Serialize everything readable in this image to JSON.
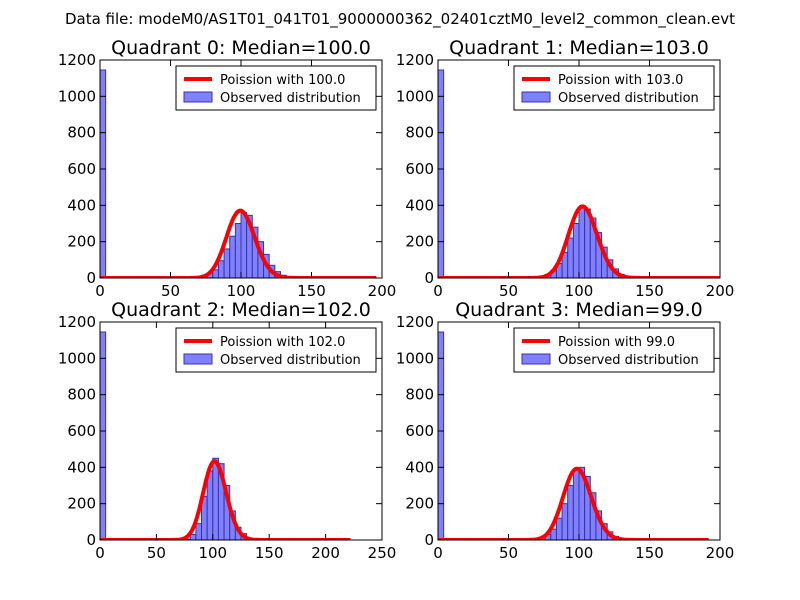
{
  "figure": {
    "title": "Data file: modeM0/AS1T01_041T01_9000000362_02401cztM0_level2_common_clean.evt"
  },
  "colors": {
    "bar_fill": "#8080ff",
    "bar_edge": "#3333aa",
    "line": "#ff0000",
    "axis": "#000000"
  },
  "chart_data": [
    {
      "type": "bar",
      "title": "Quadrant 0: Median=100.0",
      "xlim": [
        0,
        200
      ],
      "ylim": [
        0,
        1200
      ],
      "xticks": [
        0,
        50,
        100,
        150,
        200
      ],
      "yticks": [
        0,
        200,
        400,
        600,
        800,
        1000,
        1200
      ],
      "grid": false,
      "legend_position": "top-right",
      "bin_width": 4,
      "observed": {
        "name": "Observed distribution",
        "bins": [
          [
            0,
            1145
          ],
          [
            64,
            5
          ],
          [
            68,
            8
          ],
          [
            72,
            15
          ],
          [
            76,
            28
          ],
          [
            80,
            45
          ],
          [
            84,
            95
          ],
          [
            88,
            160
          ],
          [
            92,
            230
          ],
          [
            96,
            300
          ],
          [
            100,
            360
          ],
          [
            104,
            345
          ],
          [
            108,
            280
          ],
          [
            112,
            200
          ],
          [
            116,
            130
          ],
          [
            120,
            70
          ],
          [
            124,
            35
          ],
          [
            128,
            15
          ],
          [
            132,
            5
          ]
        ]
      },
      "model": {
        "name": "Poission with 100.0",
        "mean": 100,
        "x_range": [
          0,
          196
        ]
      }
    },
    {
      "type": "bar",
      "title": "Quadrant 1: Median=103.0",
      "xlim": [
        0,
        200
      ],
      "ylim": [
        0,
        1200
      ],
      "xticks": [
        0,
        50,
        100,
        150,
        200
      ],
      "yticks": [
        0,
        200,
        400,
        600,
        800,
        1000,
        1200
      ],
      "grid": false,
      "legend_position": "top-right",
      "bin_width": 4,
      "observed": {
        "name": "Observed distribution",
        "bins": [
          [
            0,
            1145
          ],
          [
            68,
            5
          ],
          [
            72,
            10
          ],
          [
            76,
            20
          ],
          [
            80,
            40
          ],
          [
            84,
            80
          ],
          [
            88,
            140
          ],
          [
            92,
            220
          ],
          [
            96,
            300
          ],
          [
            100,
            385
          ],
          [
            104,
            380
          ],
          [
            108,
            330
          ],
          [
            112,
            250
          ],
          [
            116,
            170
          ],
          [
            120,
            100
          ],
          [
            124,
            50
          ],
          [
            128,
            20
          ],
          [
            132,
            8
          ]
        ]
      },
      "model": {
        "name": "Poission with 103.0",
        "mean": 103,
        "x_range": [
          0,
          200
        ]
      }
    },
    {
      "type": "bar",
      "title": "Quadrant 2: Median=102.0",
      "xlim": [
        0,
        250
      ],
      "ylim": [
        0,
        1200
      ],
      "xticks": [
        0,
        50,
        100,
        150,
        200,
        250
      ],
      "yticks": [
        0,
        200,
        400,
        600,
        800,
        1000,
        1200
      ],
      "grid": false,
      "legend_position": "top-right",
      "bin_width": 5,
      "observed": {
        "name": "Observed distribution",
        "bins": [
          [
            0,
            1145
          ],
          [
            75,
            5
          ],
          [
            80,
            30
          ],
          [
            85,
            90
          ],
          [
            90,
            240
          ],
          [
            95,
            380
          ],
          [
            100,
            450
          ],
          [
            105,
            420
          ],
          [
            110,
            300
          ],
          [
            115,
            160
          ],
          [
            120,
            70
          ],
          [
            125,
            35
          ],
          [
            130,
            10
          ],
          [
            135,
            5
          ]
        ]
      },
      "model": {
        "name": "Poission with 102.0",
        "mean": 102,
        "x_range": [
          0,
          222
        ]
      }
    },
    {
      "type": "bar",
      "title": "Quadrant 3: Median=99.0",
      "xlim": [
        0,
        200
      ],
      "ylim": [
        0,
        1200
      ],
      "xticks": [
        0,
        50,
        100,
        150,
        200
      ],
      "yticks": [
        0,
        200,
        400,
        600,
        800,
        1000,
        1200
      ],
      "grid": false,
      "legend_position": "top-right",
      "bin_width": 4,
      "observed": {
        "name": "Observed distribution",
        "bins": [
          [
            0,
            1145
          ],
          [
            68,
            5
          ],
          [
            72,
            12
          ],
          [
            76,
            30
          ],
          [
            80,
            60
          ],
          [
            84,
            120
          ],
          [
            88,
            200
          ],
          [
            92,
            300
          ],
          [
            96,
            390
          ],
          [
            100,
            400
          ],
          [
            104,
            350
          ],
          [
            108,
            260
          ],
          [
            112,
            160
          ],
          [
            116,
            90
          ],
          [
            120,
            45
          ],
          [
            124,
            20
          ],
          [
            128,
            8
          ]
        ]
      },
      "model": {
        "name": "Poission with 99.0",
        "mean": 99,
        "x_range": [
          0,
          192
        ]
      }
    }
  ]
}
